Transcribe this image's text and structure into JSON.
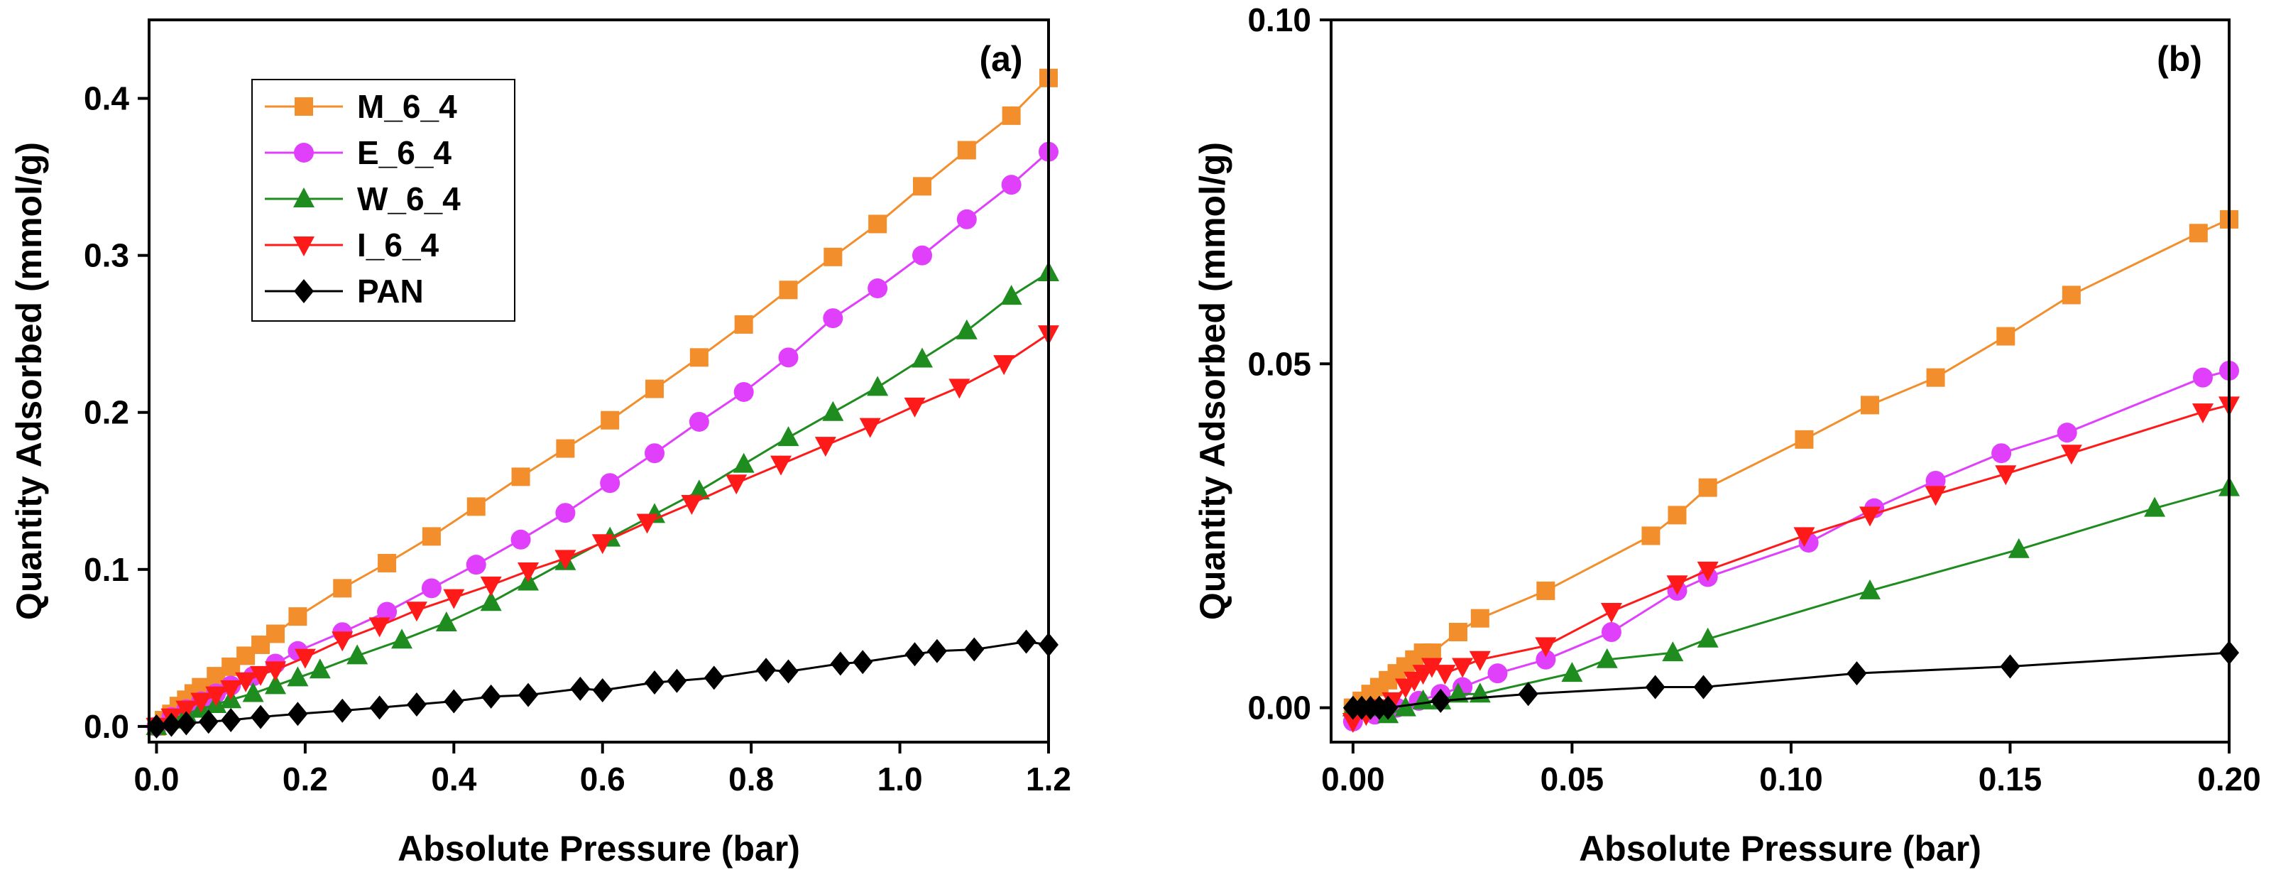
{
  "chart_data": [
    {
      "type": "line",
      "panel_label": "(a)",
      "xlabel": "Absolute Pressure (bar)",
      "ylabel": "Quantity Adsorbed (mmol/g)",
      "xlim": [
        -0.01,
        1.2
      ],
      "ylim": [
        -0.01,
        0.45
      ],
      "xticks": [
        0.0,
        0.2,
        0.4,
        0.6,
        0.8,
        1.0,
        1.2
      ],
      "xtick_labels": [
        "0.0",
        "0.2",
        "0.4",
        "0.6",
        "0.8",
        "1.0",
        "1.2"
      ],
      "yticks": [
        0.0,
        0.1,
        0.2,
        0.3,
        0.4
      ],
      "ytick_labels": [
        "0.0",
        "0.1",
        "0.2",
        "0.3",
        "0.4"
      ],
      "grid": false,
      "legend": "top-left",
      "series": [
        {
          "name": "M_6_4",
          "color": "#F28E2B",
          "marker": "square",
          "x": [
            0.0,
            0.01,
            0.02,
            0.03,
            0.04,
            0.05,
            0.06,
            0.08,
            0.1,
            0.12,
            0.14,
            0.16,
            0.19,
            0.25,
            0.31,
            0.37,
            0.43,
            0.49,
            0.55,
            0.61,
            0.67,
            0.73,
            0.79,
            0.85,
            0.91,
            0.97,
            1.03,
            1.09,
            1.15,
            1.2
          ],
          "y": [
            0.0,
            0.004,
            0.008,
            0.013,
            0.017,
            0.021,
            0.025,
            0.032,
            0.038,
            0.045,
            0.052,
            0.059,
            0.07,
            0.088,
            0.104,
            0.121,
            0.14,
            0.159,
            0.177,
            0.195,
            0.215,
            0.235,
            0.256,
            0.278,
            0.299,
            0.32,
            0.344,
            0.367,
            0.389,
            0.413
          ]
        },
        {
          "name": "E_6_4",
          "color": "#E040FB",
          "marker": "circle",
          "x": [
            0.0,
            0.02,
            0.04,
            0.06,
            0.08,
            0.1,
            0.13,
            0.16,
            0.19,
            0.25,
            0.31,
            0.37,
            0.43,
            0.49,
            0.55,
            0.61,
            0.67,
            0.73,
            0.79,
            0.85,
            0.91,
            0.97,
            1.03,
            1.09,
            1.15,
            1.2
          ],
          "y": [
            0.0,
            0.006,
            0.011,
            0.016,
            0.021,
            0.026,
            0.032,
            0.04,
            0.048,
            0.06,
            0.073,
            0.088,
            0.103,
            0.119,
            0.136,
            0.155,
            0.174,
            0.194,
            0.213,
            0.235,
            0.26,
            0.279,
            0.3,
            0.323,
            0.345,
            0.366
          ]
        },
        {
          "name": "W_6_4",
          "color": "#1E8C1E",
          "marker": "triangle-up",
          "x": [
            0.0,
            0.02,
            0.04,
            0.06,
            0.08,
            0.1,
            0.13,
            0.16,
            0.19,
            0.22,
            0.27,
            0.33,
            0.39,
            0.45,
            0.5,
            0.55,
            0.61,
            0.67,
            0.73,
            0.79,
            0.85,
            0.91,
            0.97,
            1.03,
            1.09,
            1.15,
            1.2
          ],
          "y": [
            0.0,
            0.004,
            0.008,
            0.011,
            0.014,
            0.017,
            0.021,
            0.026,
            0.031,
            0.036,
            0.045,
            0.055,
            0.066,
            0.079,
            0.092,
            0.105,
            0.12,
            0.135,
            0.15,
            0.167,
            0.184,
            0.2,
            0.216,
            0.234,
            0.252,
            0.274,
            0.289
          ]
        },
        {
          "name": "I_6_4",
          "color": "#FF1A1A",
          "marker": "triangle-down",
          "x": [
            0.0,
            0.02,
            0.04,
            0.06,
            0.08,
            0.1,
            0.12,
            0.14,
            0.16,
            0.2,
            0.25,
            0.3,
            0.35,
            0.4,
            0.45,
            0.5,
            0.55,
            0.6,
            0.66,
            0.72,
            0.78,
            0.84,
            0.9,
            0.96,
            1.02,
            1.08,
            1.14,
            1.2
          ],
          "y": [
            0.0,
            0.006,
            0.011,
            0.016,
            0.02,
            0.024,
            0.029,
            0.033,
            0.036,
            0.044,
            0.055,
            0.064,
            0.074,
            0.082,
            0.09,
            0.099,
            0.107,
            0.117,
            0.13,
            0.142,
            0.155,
            0.167,
            0.179,
            0.191,
            0.204,
            0.216,
            0.231,
            0.25
          ]
        },
        {
          "name": "PAN",
          "color": "#000000",
          "marker": "diamond",
          "x": [
            0.0,
            0.02,
            0.04,
            0.07,
            0.1,
            0.14,
            0.19,
            0.25,
            0.3,
            0.35,
            0.4,
            0.45,
            0.5,
            0.57,
            0.6,
            0.67,
            0.7,
            0.75,
            0.82,
            0.85,
            0.92,
            0.95,
            1.02,
            1.05,
            1.1,
            1.17,
            1.2
          ],
          "y": [
            0.0,
            0.001,
            0.002,
            0.003,
            0.004,
            0.006,
            0.008,
            0.01,
            0.012,
            0.014,
            0.016,
            0.019,
            0.02,
            0.024,
            0.023,
            0.028,
            0.029,
            0.031,
            0.036,
            0.035,
            0.04,
            0.041,
            0.046,
            0.048,
            0.049,
            0.054,
            0.052
          ]
        }
      ]
    },
    {
      "type": "line",
      "panel_label": "(b)",
      "xlabel": "Absolute Pressure (bar)",
      "ylabel": "Quantity Adsorbed (mmol/g)",
      "xlim": [
        -0.005,
        0.2
      ],
      "ylim": [
        -0.005,
        0.1
      ],
      "xticks": [
        0.0,
        0.05,
        0.1,
        0.15,
        0.2
      ],
      "xtick_labels": [
        "0.00",
        "0.05",
        "0.10",
        "0.15",
        "0.20"
      ],
      "yticks": [
        0.0,
        0.05,
        0.1
      ],
      "ytick_labels": [
        "0.00",
        "0.05",
        "0.10"
      ],
      "grid": false,
      "legend": "none",
      "series": [
        {
          "name": "M_6_4",
          "color": "#F28E2B",
          "marker": "square",
          "x": [
            0.0,
            0.002,
            0.004,
            0.006,
            0.008,
            0.01,
            0.012,
            0.014,
            0.016,
            0.018,
            0.024,
            0.029,
            0.044,
            0.068,
            0.074,
            0.081,
            0.103,
            0.118,
            0.133,
            0.149,
            0.164,
            0.193,
            0.2
          ],
          "y": [
            0.0,
            0.001,
            0.002,
            0.003,
            0.004,
            0.005,
            0.006,
            0.007,
            0.008,
            0.008,
            0.011,
            0.013,
            0.017,
            0.025,
            0.028,
            0.032,
            0.039,
            0.044,
            0.048,
            0.054,
            0.06,
            0.069,
            0.071
          ]
        },
        {
          "name": "E_6_4",
          "color": "#E040FB",
          "marker": "circle",
          "x": [
            0.0,
            0.005,
            0.01,
            0.015,
            0.02,
            0.025,
            0.033,
            0.044,
            0.059,
            0.074,
            0.081,
            0.104,
            0.119,
            0.133,
            0.148,
            0.163,
            0.194,
            0.2
          ],
          "y": [
            -0.002,
            -0.001,
            0.0,
            0.001,
            0.002,
            0.003,
            0.005,
            0.007,
            0.011,
            0.017,
            0.019,
            0.024,
            0.029,
            0.033,
            0.037,
            0.04,
            0.048,
            0.049
          ]
        },
        {
          "name": "W_6_4",
          "color": "#1E8C1E",
          "marker": "triangle-up",
          "x": [
            0.0,
            0.004,
            0.008,
            0.012,
            0.016,
            0.02,
            0.024,
            0.029,
            0.05,
            0.058,
            0.073,
            0.081,
            0.118,
            0.152,
            0.183,
            0.2
          ],
          "y": [
            0.0,
            0.0,
            -0.001,
            0.0,
            0.001,
            0.001,
            0.002,
            0.002,
            0.005,
            0.007,
            0.008,
            0.01,
            0.017,
            0.023,
            0.029,
            0.032
          ]
        },
        {
          "name": "I_6_4",
          "color": "#FF1A1A",
          "marker": "triangle-down",
          "x": [
            0.0,
            0.003,
            0.006,
            0.009,
            0.012,
            0.014,
            0.016,
            0.018,
            0.021,
            0.025,
            0.029,
            0.044,
            0.059,
            0.074,
            0.081,
            0.103,
            0.118,
            0.133,
            0.149,
            0.164,
            0.194,
            0.2
          ],
          "y": [
            -0.002,
            -0.001,
            0.0,
            0.001,
            0.003,
            0.004,
            0.005,
            0.006,
            0.005,
            0.006,
            0.007,
            0.009,
            0.014,
            0.018,
            0.02,
            0.025,
            0.028,
            0.031,
            0.034,
            0.037,
            0.043,
            0.044
          ]
        },
        {
          "name": "PAN",
          "color": "#000000",
          "marker": "diamond",
          "x": [
            0.0,
            0.002,
            0.004,
            0.006,
            0.008,
            0.02,
            0.04,
            0.069,
            0.08,
            0.115,
            0.15,
            0.2
          ],
          "y": [
            0.0,
            0.0,
            0.0,
            0.0,
            0.0,
            0.001,
            0.002,
            0.003,
            0.003,
            0.005,
            0.006,
            0.008
          ]
        }
      ]
    }
  ]
}
